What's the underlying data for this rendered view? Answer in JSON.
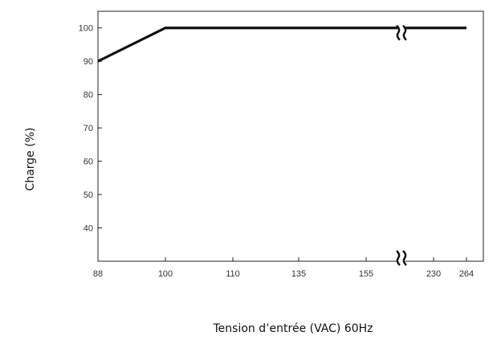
{
  "chart_data": {
    "type": "line",
    "title": "",
    "xlabel": "Tension d’entrée (VAC) 60Hz",
    "ylabel": "Charge (%)",
    "x_ticks": [
      "88",
      "100",
      "110",
      "135",
      "155",
      "230",
      "264"
    ],
    "y_ticks": [
      "100",
      "90",
      "80",
      "70",
      "60",
      "50",
      "40"
    ],
    "ylim": [
      30,
      105
    ],
    "axis_break_between": [
      "155",
      "230"
    ],
    "grid": false,
    "series": [
      {
        "x": [
          "88",
          "100",
          "264"
        ],
        "y": [
          90,
          100,
          100
        ]
      }
    ],
    "colors": {
      "line": "#111111",
      "axis": "#222222",
      "text": "#333333"
    }
  }
}
